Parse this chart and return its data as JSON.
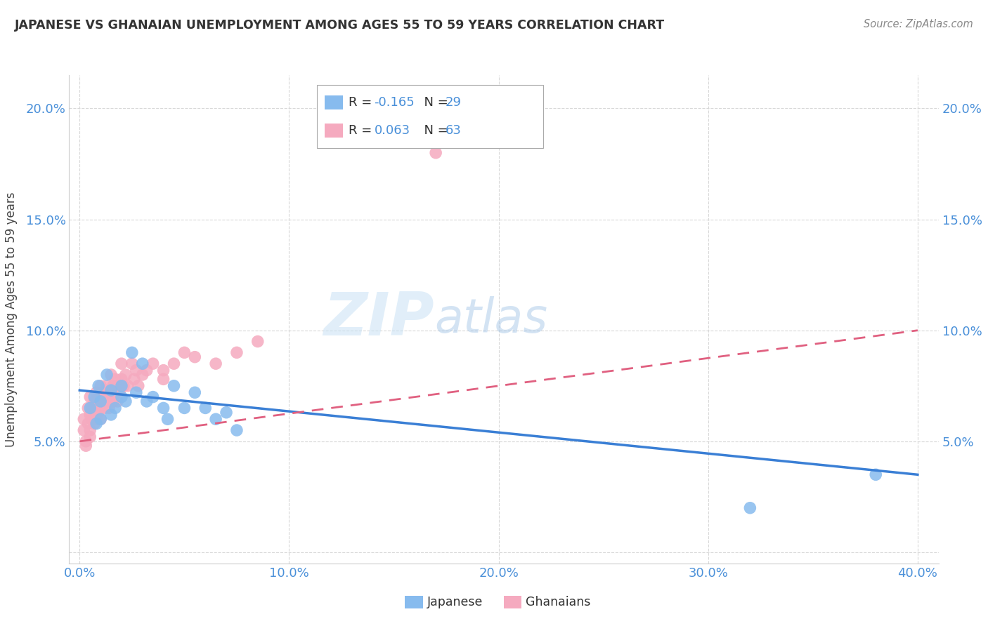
{
  "title": "JAPANESE VS GHANAIAN UNEMPLOYMENT AMONG AGES 55 TO 59 YEARS CORRELATION CHART",
  "source": "Source: ZipAtlas.com",
  "ylabel": "Unemployment Among Ages 55 to 59 years",
  "xlim": [
    -0.005,
    0.41
  ],
  "ylim": [
    -0.005,
    0.215
  ],
  "xticks": [
    0.0,
    0.1,
    0.2,
    0.3,
    0.4
  ],
  "xticklabels": [
    "0.0%",
    "10.0%",
    "20.0%",
    "30.0%",
    "40.0%"
  ],
  "yticks": [
    0.0,
    0.05,
    0.1,
    0.15,
    0.2
  ],
  "yticklabels_left": [
    "",
    "5.0%",
    "10.0%",
    "15.0%",
    "20.0%"
  ],
  "yticklabels_right": [
    "",
    "5.0%",
    "10.0%",
    "15.0%",
    "20.0%"
  ],
  "japanese_color": "#87bbee",
  "ghanaian_color": "#f5aabf",
  "trendline_japanese_color": "#3a7fd5",
  "trendline_ghanaian_color": "#e06080",
  "japanese_x": [
    0.005,
    0.007,
    0.008,
    0.009,
    0.01,
    0.01,
    0.013,
    0.015,
    0.015,
    0.017,
    0.02,
    0.02,
    0.022,
    0.025,
    0.027,
    0.03,
    0.032,
    0.035,
    0.04,
    0.042,
    0.045,
    0.05,
    0.055,
    0.06,
    0.065,
    0.07,
    0.075,
    0.32,
    0.38
  ],
  "japanese_y": [
    0.065,
    0.07,
    0.058,
    0.075,
    0.068,
    0.06,
    0.08,
    0.073,
    0.062,
    0.065,
    0.07,
    0.075,
    0.068,
    0.09,
    0.072,
    0.085,
    0.068,
    0.07,
    0.065,
    0.06,
    0.075,
    0.065,
    0.072,
    0.065,
    0.06,
    0.063,
    0.055,
    0.02,
    0.035
  ],
  "ghanaian_x": [
    0.002,
    0.002,
    0.003,
    0.003,
    0.004,
    0.004,
    0.005,
    0.005,
    0.005,
    0.005,
    0.006,
    0.006,
    0.007,
    0.007,
    0.007,
    0.008,
    0.008,
    0.008,
    0.009,
    0.009,
    0.01,
    0.01,
    0.01,
    0.01,
    0.011,
    0.011,
    0.012,
    0.012,
    0.013,
    0.013,
    0.014,
    0.014,
    0.015,
    0.015,
    0.015,
    0.016,
    0.016,
    0.017,
    0.017,
    0.018,
    0.018,
    0.019,
    0.02,
    0.02,
    0.021,
    0.022,
    0.023,
    0.025,
    0.026,
    0.027,
    0.028,
    0.03,
    0.032,
    0.035,
    0.04,
    0.04,
    0.045,
    0.05,
    0.055,
    0.065,
    0.075,
    0.085,
    0.17
  ],
  "ghanaian_y": [
    0.06,
    0.055,
    0.05,
    0.048,
    0.065,
    0.058,
    0.07,
    0.062,
    0.055,
    0.052,
    0.065,
    0.06,
    0.068,
    0.063,
    0.058,
    0.072,
    0.065,
    0.06,
    0.068,
    0.063,
    0.075,
    0.07,
    0.065,
    0.06,
    0.072,
    0.068,
    0.07,
    0.065,
    0.075,
    0.068,
    0.072,
    0.065,
    0.08,
    0.073,
    0.068,
    0.075,
    0.068,
    0.078,
    0.072,
    0.075,
    0.068,
    0.072,
    0.085,
    0.078,
    0.075,
    0.08,
    0.075,
    0.085,
    0.078,
    0.082,
    0.075,
    0.08,
    0.082,
    0.085,
    0.082,
    0.078,
    0.085,
    0.09,
    0.088,
    0.085,
    0.09,
    0.095,
    0.18
  ],
  "watermark_zip": "ZIP",
  "watermark_atlas": "atlas",
  "background_color": "#ffffff",
  "grid_color": "#d8d8d8"
}
